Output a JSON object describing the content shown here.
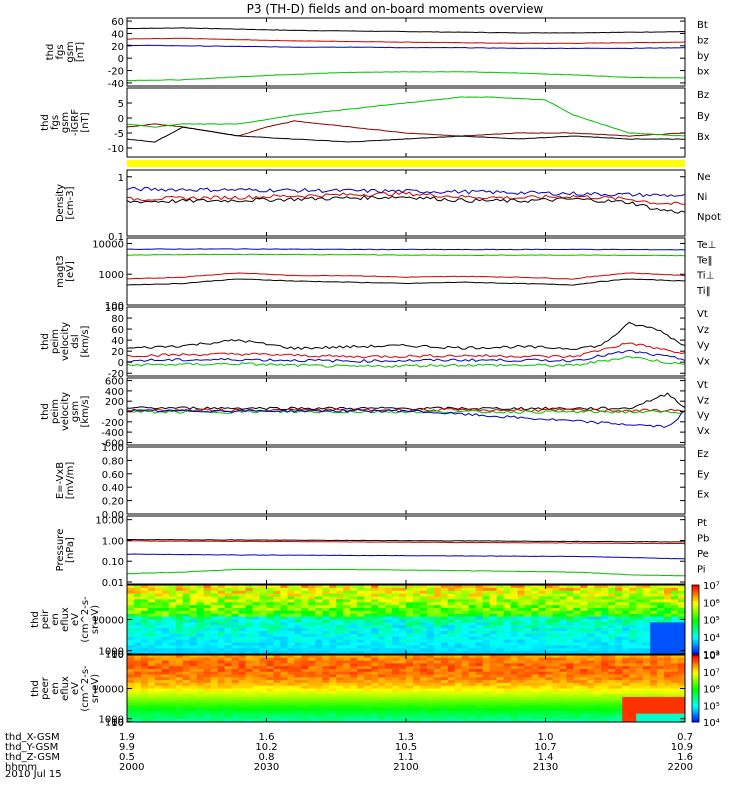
{
  "title": "P3 (TH-D) fields and on-board moments overview",
  "time_axis": {
    "start_hhmm": "2000",
    "end_hhmm": "2200"
  },
  "panels": [
    {
      "id": "fgs",
      "type": "line",
      "ylabel": [
        "thd",
        "fgs",
        "gsm",
        "[nT]"
      ],
      "ylim": [
        -45,
        65
      ],
      "ticks": [
        -40,
        -20,
        0,
        20,
        40,
        60
      ],
      "series": [
        {
          "name": "Bt",
          "color": "#000000",
          "x": [
            0,
            0.1,
            0.2,
            0.3,
            0.4,
            0.5,
            0.6,
            0.7,
            0.8,
            0.9,
            1
          ],
          "y": [
            48,
            49,
            47,
            45,
            44,
            43,
            42,
            41,
            41,
            42,
            43
          ]
        },
        {
          "name": "bz",
          "color": "#d00000",
          "x": [
            0,
            0.1,
            0.2,
            0.3,
            0.4,
            0.5,
            0.6,
            0.7,
            0.8,
            0.9,
            1
          ],
          "y": [
            31,
            32,
            30,
            28,
            27,
            26,
            25,
            24,
            24,
            25,
            26
          ]
        },
        {
          "name": "by",
          "color": "#00c000",
          "x": [
            0,
            0.1,
            0.2,
            0.3,
            0.4,
            0.5,
            0.6,
            0.7,
            0.8,
            0.9,
            1
          ],
          "y": [
            -36,
            -35,
            -30,
            -26,
            -23,
            -22,
            -22,
            -24,
            -27,
            -31,
            -32
          ]
        },
        {
          "name": "bx",
          "color": "#0000c0",
          "x": [
            0,
            0.1,
            0.2,
            0.3,
            0.4,
            0.5,
            0.6,
            0.7,
            0.8,
            0.9,
            1
          ],
          "y": [
            21,
            20,
            19,
            18,
            18,
            17,
            17,
            16,
            16,
            16,
            17
          ]
        }
      ]
    },
    {
      "id": "fgs_dsl",
      "type": "line",
      "ylabel": [
        "thd",
        "fgs",
        "gsm",
        "-IGRF",
        "[nT]"
      ],
      "ylim": [
        -13,
        10
      ],
      "ticks": [
        -10,
        -5,
        0,
        5
      ],
      "series": [
        {
          "name": "Bz",
          "color": "#8b0000",
          "x": [
            0,
            0.05,
            0.1,
            0.2,
            0.25,
            0.3,
            0.4,
            0.5,
            0.6,
            0.7,
            0.8,
            0.9,
            1
          ],
          "y": [
            -3,
            -2,
            -3,
            -6,
            -3,
            -1,
            -3,
            -5,
            -6,
            -5,
            -5,
            -6,
            -5
          ]
        },
        {
          "name": "By",
          "color": "#00c000",
          "x": [
            0,
            0.05,
            0.1,
            0.2,
            0.3,
            0.4,
            0.5,
            0.6,
            0.65,
            0.75,
            0.8,
            0.9,
            1
          ],
          "y": [
            -2,
            -3,
            -2,
            -2,
            1,
            3,
            5,
            7,
            7,
            6,
            1,
            -5,
            -6
          ]
        },
        {
          "name": "Bx",
          "color": "#000000",
          "x": [
            0,
            0.05,
            0.1,
            0.2,
            0.3,
            0.4,
            0.5,
            0.6,
            0.7,
            0.8,
            0.9,
            1
          ],
          "y": [
            -7,
            -8,
            -3,
            -6,
            -7,
            -8,
            -7,
            -6,
            -7,
            -6,
            -7,
            -7
          ]
        }
      ]
    },
    {
      "id": "density",
      "type": "line",
      "log": true,
      "ylabel": [
        "Density",
        "[cm-3]"
      ],
      "ylim": [
        0.1,
        1.3
      ],
      "ticks": [
        0.1,
        1.0
      ],
      "series": [
        {
          "name": "Ne",
          "color": "#d00000",
          "x": [
            0,
            0.2,
            0.4,
            0.5,
            0.6,
            0.7,
            0.8,
            0.9,
            0.95,
            1
          ],
          "y": [
            0.42,
            0.45,
            0.5,
            0.52,
            0.46,
            0.44,
            0.47,
            0.42,
            0.36,
            0.34
          ]
        },
        {
          "name": "Ni",
          "color": "#000000",
          "x": [
            0,
            0.2,
            0.4,
            0.5,
            0.6,
            0.7,
            0.8,
            0.9,
            0.95,
            1
          ],
          "y": [
            0.38,
            0.4,
            0.44,
            0.46,
            0.4,
            0.39,
            0.42,
            0.37,
            0.28,
            0.25
          ]
        },
        {
          "name": "Npot",
          "color": "#0000c0",
          "x": [
            0,
            0.2,
            0.4,
            0.5,
            0.6,
            0.7,
            0.8,
            0.9,
            1
          ],
          "y": [
            0.62,
            0.6,
            0.58,
            0.57,
            0.56,
            0.54,
            0.52,
            0.5,
            0.48
          ]
        }
      ]
    },
    {
      "id": "temps",
      "type": "line",
      "log": true,
      "ylabel": [
        "magt3",
        "[eV]"
      ],
      "ylim": [
        100,
        15000
      ],
      "ticks": [
        100,
        1000,
        10000
      ],
      "series": [
        {
          "name": "Te⊥",
          "color": "#d00000",
          "x": [
            0,
            0.1,
            0.2,
            0.3,
            0.4,
            0.5,
            0.6,
            0.7,
            0.8,
            0.9,
            1
          ],
          "y": [
            700,
            800,
            1100,
            900,
            900,
            800,
            850,
            800,
            700,
            1100,
            900
          ]
        },
        {
          "name": "Te‖",
          "color": "#000000",
          "x": [
            0,
            0.1,
            0.2,
            0.3,
            0.4,
            0.5,
            0.6,
            0.7,
            0.8,
            0.9,
            1
          ],
          "y": [
            450,
            500,
            700,
            600,
            550,
            500,
            550,
            500,
            450,
            700,
            600
          ]
        },
        {
          "name": "Ti⊥",
          "color": "#0000c0",
          "x": [
            0,
            0.2,
            0.4,
            0.6,
            0.8,
            1
          ],
          "y": [
            6500,
            6600,
            6400,
            6300,
            6400,
            6200
          ]
        },
        {
          "name": "Ti‖",
          "color": "#00c000",
          "x": [
            0,
            0.2,
            0.4,
            0.6,
            0.8,
            1
          ],
          "y": [
            4200,
            4400,
            4300,
            4100,
            4200,
            4000
          ]
        }
      ]
    },
    {
      "id": "peim_vel_dsl",
      "type": "line",
      "ylabel": [
        "thd",
        "peim",
        "velocity",
        "dsl",
        "[km/s]"
      ],
      "ylim": [
        -25,
        100
      ],
      "ticks": [
        -20,
        0,
        20,
        40,
        60,
        80,
        100
      ],
      "series": [
        {
          "name": "Vt",
          "color": "#000000",
          "x": [
            0,
            0.1,
            0.2,
            0.3,
            0.4,
            0.5,
            0.6,
            0.7,
            0.8,
            0.85,
            0.9,
            0.95,
            1
          ],
          "y": [
            25,
            30,
            40,
            25,
            28,
            30,
            26,
            28,
            25,
            30,
            70,
            60,
            30
          ]
        },
        {
          "name": "Vz",
          "color": "#d00000",
          "x": [
            0,
            0.2,
            0.4,
            0.6,
            0.8,
            0.9,
            1
          ],
          "y": [
            12,
            15,
            10,
            12,
            10,
            35,
            15
          ]
        },
        {
          "name": "Vy",
          "color": "#00c000",
          "x": [
            0,
            0.2,
            0.4,
            0.6,
            0.8,
            0.9,
            1
          ],
          "y": [
            -5,
            -3,
            -8,
            -5,
            -6,
            10,
            -5
          ]
        },
        {
          "name": "Vx",
          "color": "#0000c0",
          "x": [
            0,
            0.2,
            0.4,
            0.6,
            0.8,
            0.9,
            1
          ],
          "y": [
            3,
            5,
            2,
            4,
            3,
            20,
            5
          ]
        }
      ]
    },
    {
      "id": "peim_vel_gsm",
      "type": "line",
      "ylabel": [
        "thd",
        "peim",
        "velocity",
        "gsm",
        "[km/s]"
      ],
      "ylim": [
        -650,
        650
      ],
      "ticks": [
        -600,
        -400,
        -200,
        0,
        200,
        400,
        600
      ],
      "series": [
        {
          "name": "Vt",
          "color": "#000000",
          "x": [
            0,
            0.5,
            0.9,
            0.97,
            1
          ],
          "y": [
            70,
            60,
            60,
            350,
            80
          ]
        },
        {
          "name": "Vz",
          "color": "#d00000",
          "x": [
            0,
            0.5,
            1
          ],
          "y": [
            20,
            30,
            20
          ]
        },
        {
          "name": "Vy",
          "color": "#00c000",
          "x": [
            0,
            0.5,
            1
          ],
          "y": [
            -10,
            -5,
            -10
          ]
        },
        {
          "name": "Vx",
          "color": "#0000c0",
          "x": [
            0,
            0.5,
            0.97,
            1
          ],
          "y": [
            10,
            15,
            -300,
            10
          ]
        }
      ]
    },
    {
      "id": "efield",
      "type": "line",
      "ylabel": [
        "E=-VxB",
        "[mV/m]"
      ],
      "ylim": [
        0,
        1
      ],
      "ticks": [
        "0.00",
        "0.20",
        "0.40",
        "0.60",
        "0.80",
        "1.00"
      ],
      "series": [
        {
          "name": "Ez",
          "color": "#d00000",
          "x": [],
          "y": []
        },
        {
          "name": "Ey",
          "color": "#00c000",
          "x": [],
          "y": []
        },
        {
          "name": "Ex",
          "color": "#0000c0",
          "x": [],
          "y": []
        }
      ]
    },
    {
      "id": "pressure",
      "type": "line",
      "log": true,
      "ylabel": [
        "Pressure",
        "[nPa]"
      ],
      "ylim": [
        0.008,
        15
      ],
      "ticks": [
        "0.01",
        "0.10",
        "1.00",
        "10.00"
      ],
      "series": [
        {
          "name": "Pt",
          "color": "#000000",
          "x": [
            0,
            0.2,
            0.4,
            0.6,
            0.8,
            1
          ],
          "y": [
            1.1,
            1.05,
            1.0,
            0.95,
            0.9,
            0.85
          ]
        },
        {
          "name": "Pb",
          "color": "#d00000",
          "x": [
            0,
            0.2,
            0.4,
            0.6,
            0.8,
            1
          ],
          "y": [
            0.95,
            0.9,
            0.85,
            0.8,
            0.75,
            0.7
          ]
        },
        {
          "name": "Pe",
          "color": "#00c000",
          "x": [
            0,
            0.1,
            0.2,
            0.4,
            0.6,
            0.8,
            0.9,
            1
          ],
          "y": [
            0.025,
            0.03,
            0.04,
            0.04,
            0.035,
            0.03,
            0.022,
            0.02
          ]
        },
        {
          "name": "Pi",
          "color": "#0000c0",
          "x": [
            0,
            0.2,
            0.4,
            0.6,
            0.8,
            1
          ],
          "y": [
            0.22,
            0.2,
            0.19,
            0.18,
            0.17,
            0.13
          ]
        }
      ]
    },
    {
      "id": "peir",
      "type": "heatmap",
      "ylabel": [
        "thd",
        "peir",
        "en",
        "eflux",
        "eV",
        "(cm^2-s-",
        "sr-eV)"
      ],
      "ylim": [
        8,
        20000
      ],
      "ticks": [
        10,
        100,
        1000,
        10000
      ],
      "colorbar": {
        "ticks": [
          "10³",
          "10⁴",
          "10⁵",
          "10⁶",
          "10⁷"
        ],
        "range": [
          3,
          7
        ]
      }
    },
    {
      "id": "peer",
      "type": "heatmap",
      "ylabel": [
        "thd",
        "peer",
        "en",
        "eflux",
        "eV",
        "(cm^2-s-",
        "sr-eV)"
      ],
      "ylim": [
        8,
        20000
      ],
      "ticks": [
        10,
        100,
        1000,
        10000
      ],
      "colorbar": {
        "ticks": [
          "10⁴",
          "10⁵",
          "10⁶",
          "10⁷",
          "10⁸"
        ],
        "range": [
          4,
          8
        ]
      }
    }
  ],
  "footer": {
    "rows": [
      {
        "label": "thd_X-GSM",
        "values": [
          "1.9",
          "1.6",
          "1.3",
          "1.0",
          "0.7"
        ]
      },
      {
        "label": "thd_Y-GSM",
        "values": [
          "9.9",
          "10.2",
          "10.5",
          "10.7",
          "10.9"
        ]
      },
      {
        "label": "thd_Z-GSM",
        "values": [
          "0.5",
          "0.8",
          "1.1",
          "1.4",
          "1.6"
        ]
      },
      {
        "label": "hhmm",
        "values": [
          "2000",
          "2030",
          "2100",
          "2130",
          "2200"
        ]
      }
    ],
    "date": "2010 Jul 15"
  }
}
